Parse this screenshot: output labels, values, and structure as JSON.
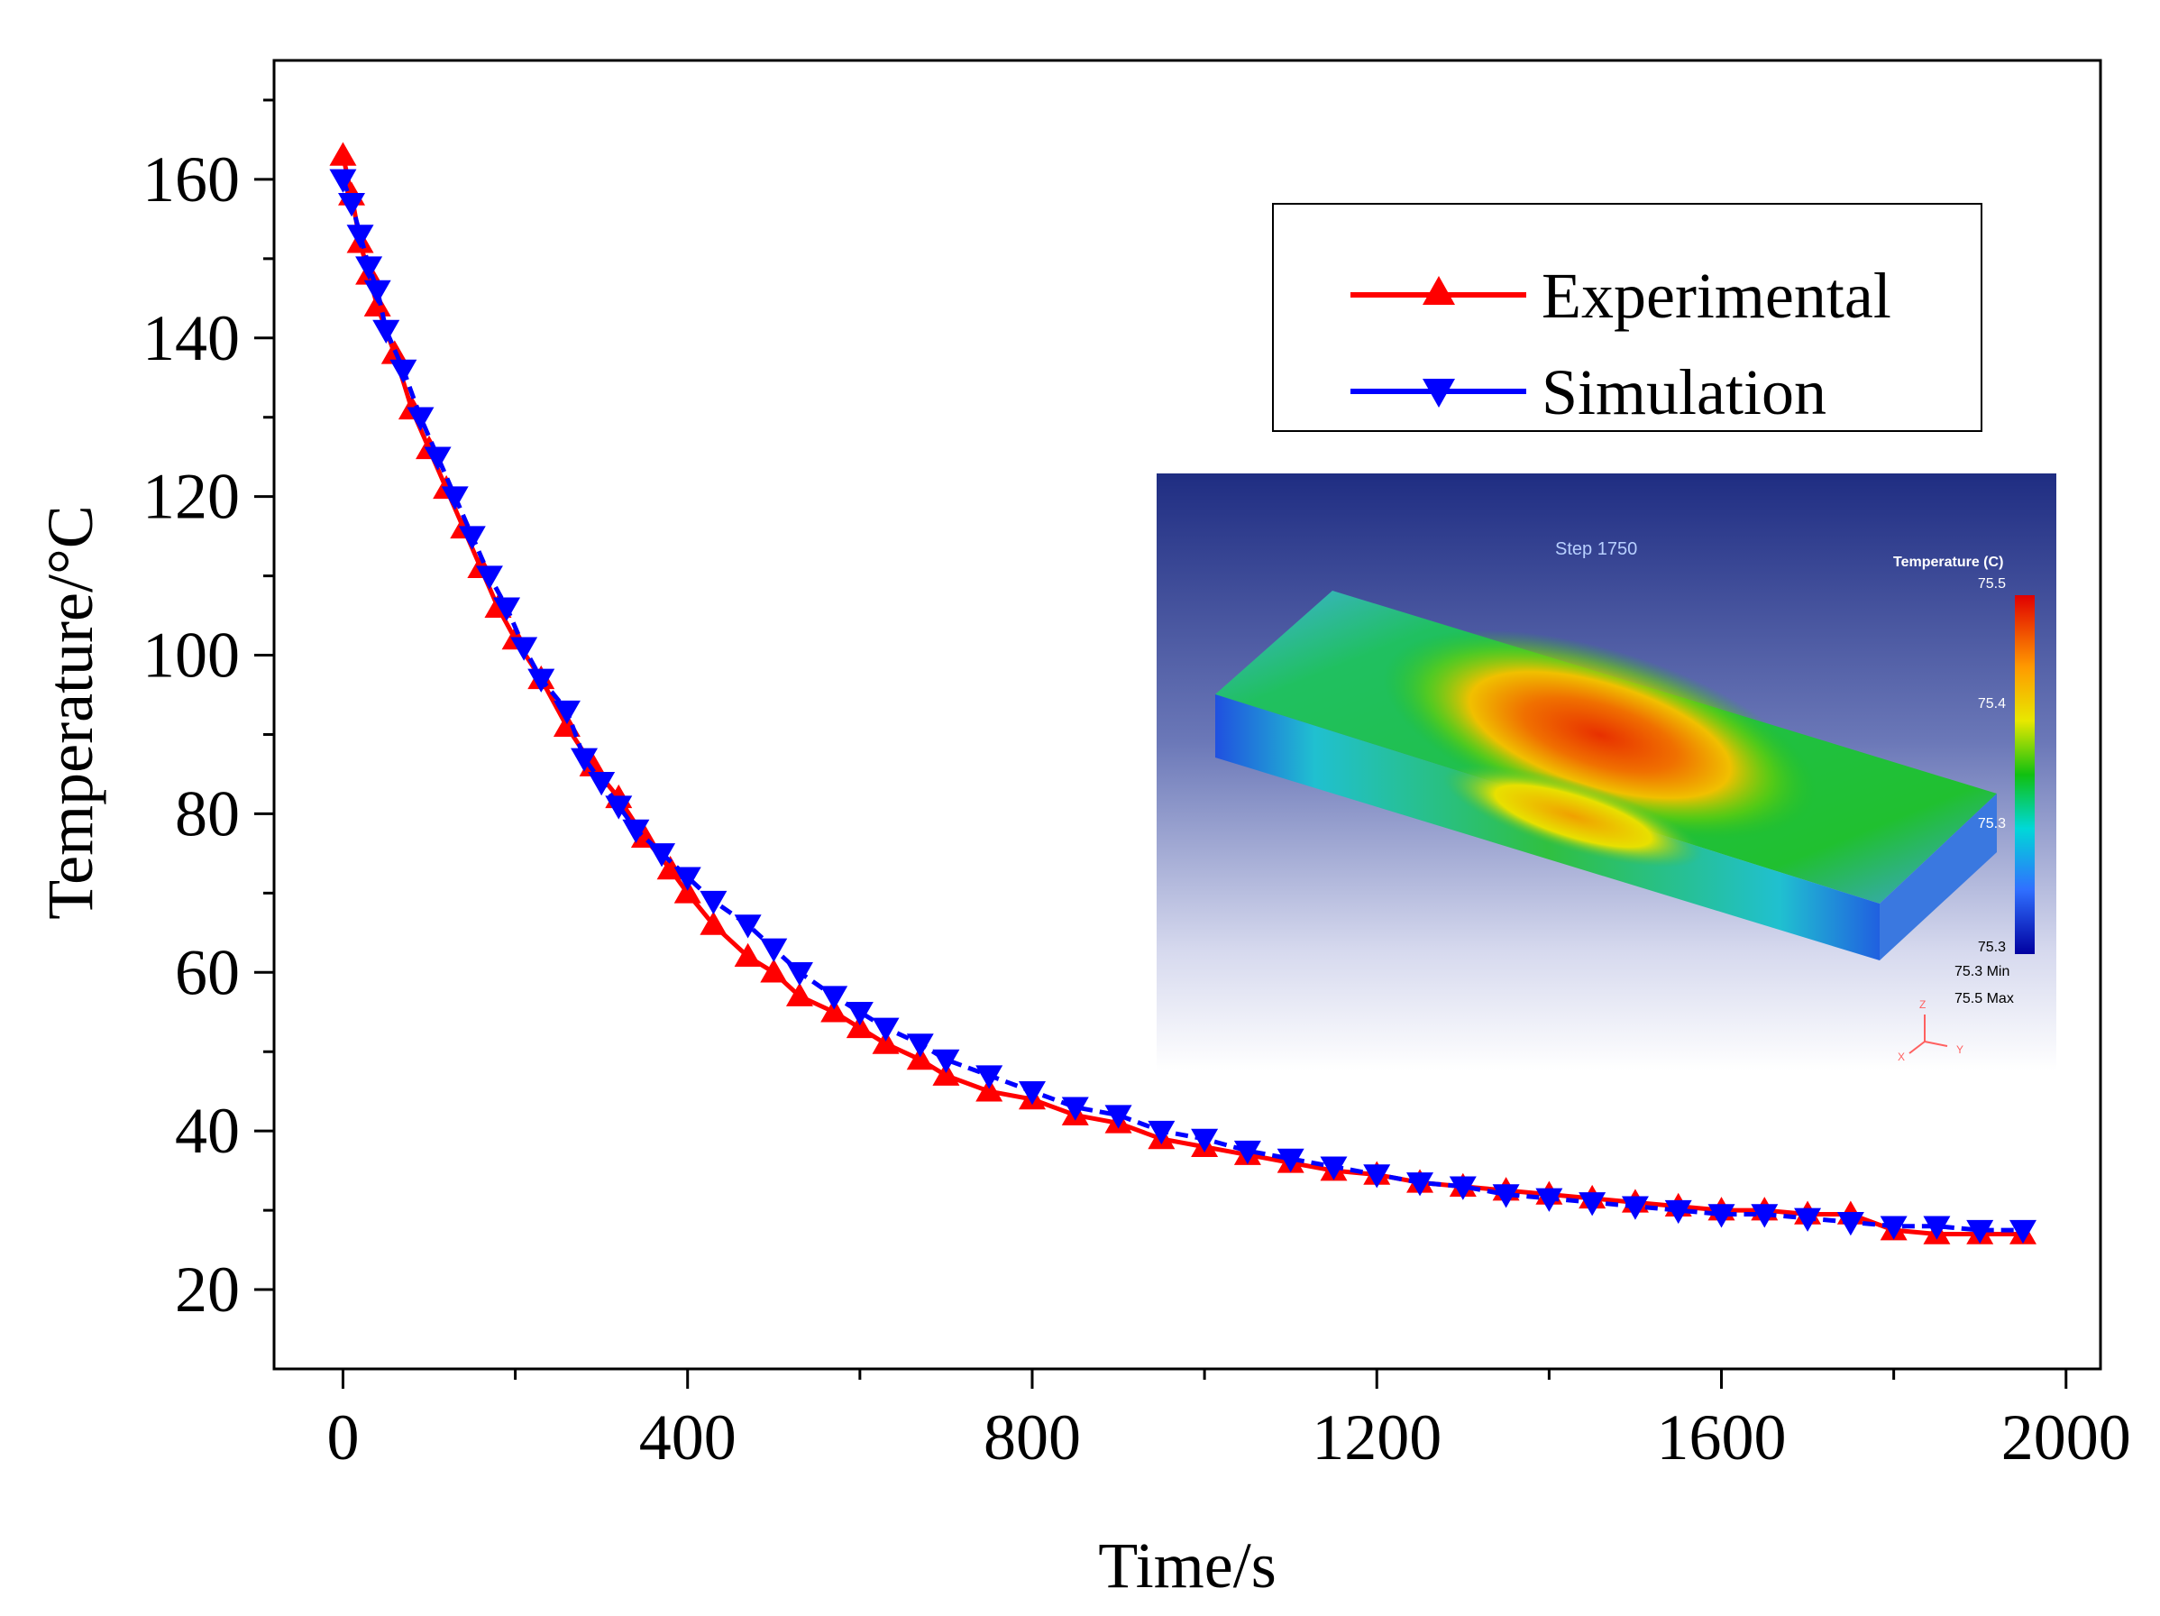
{
  "chart_data": {
    "type": "line",
    "title": "",
    "xlabel": "Time/s",
    "ylabel": "Temperature/°C",
    "xlim": [
      -80,
      2040
    ],
    "ylim": [
      10,
      175
    ],
    "xticks": [
      0,
      400,
      800,
      1200,
      1600,
      2000
    ],
    "yticks": [
      20,
      40,
      60,
      80,
      100,
      120,
      140,
      160
    ],
    "xtick_labels": [
      "0",
      "400",
      "800",
      "1200",
      "1600",
      "2000"
    ],
    "ytick_labels": [
      "20",
      "40",
      "60",
      "80",
      "100",
      "120",
      "140",
      "160"
    ],
    "legend_position": "top-right",
    "series": [
      {
        "name": "Experimental",
        "color": "#ff0000",
        "marker": "triangle-up",
        "x": [
          0,
          10,
          20,
          30,
          40,
          60,
          80,
          100,
          120,
          140,
          160,
          180,
          200,
          230,
          260,
          290,
          320,
          350,
          380,
          400,
          430,
          470,
          500,
          530,
          570,
          600,
          630,
          670,
          700,
          750,
          800,
          850,
          900,
          950,
          1000,
          1050,
          1100,
          1150,
          1200,
          1250,
          1300,
          1350,
          1400,
          1450,
          1500,
          1550,
          1600,
          1650,
          1700,
          1750,
          1800,
          1850,
          1900,
          1950
        ],
        "y": [
          163,
          158,
          152,
          148,
          144,
          138,
          131,
          126,
          121,
          116,
          111,
          106,
          102,
          97,
          91,
          86,
          82,
          77,
          73,
          70,
          66,
          62,
          60,
          57,
          55,
          53,
          51,
          49,
          47,
          45,
          44,
          42,
          41,
          39,
          38,
          37,
          36,
          35,
          34.5,
          33.5,
          33,
          32.5,
          32,
          31.5,
          31,
          30.5,
          30,
          30,
          29.5,
          29.5,
          27.5,
          27,
          27,
          27
        ]
      },
      {
        "name": "Simulation",
        "color": "#0000ff",
        "marker": "triangle-down",
        "x": [
          0,
          10,
          20,
          30,
          40,
          50,
          70,
          90,
          110,
          130,
          150,
          170,
          190,
          210,
          230,
          260,
          280,
          300,
          320,
          340,
          370,
          400,
          430,
          470,
          500,
          530,
          570,
          600,
          630,
          670,
          700,
          750,
          800,
          850,
          900,
          950,
          1000,
          1050,
          1100,
          1150,
          1200,
          1250,
          1300,
          1350,
          1400,
          1450,
          1500,
          1550,
          1600,
          1650,
          1700,
          1750,
          1800,
          1850,
          1900,
          1950
        ],
        "y": [
          160,
          157,
          153,
          149,
          146,
          141,
          136,
          130,
          125,
          120,
          115,
          110,
          106,
          101,
          97,
          93,
          87,
          84,
          81,
          78,
          75,
          72,
          69,
          66,
          63,
          60,
          57,
          55,
          53,
          51,
          49,
          47,
          45,
          43,
          42,
          40,
          39,
          37.5,
          36.5,
          35.5,
          34.5,
          33.5,
          33,
          32,
          31.5,
          31,
          30.5,
          30,
          29.5,
          29.5,
          29,
          28.5,
          28,
          28,
          27.5,
          27.5
        ]
      }
    ],
    "inset": {
      "title": "Step 1750",
      "colorbar_title": "Temperature (C)",
      "colorbar_ticks": [
        "75.5",
        "75.4",
        "75.3",
        "75.3"
      ],
      "min_label": "75.3  Min",
      "max_label": "75.5  Max",
      "axis_letters": [
        "Z",
        "X",
        "Y"
      ]
    }
  }
}
